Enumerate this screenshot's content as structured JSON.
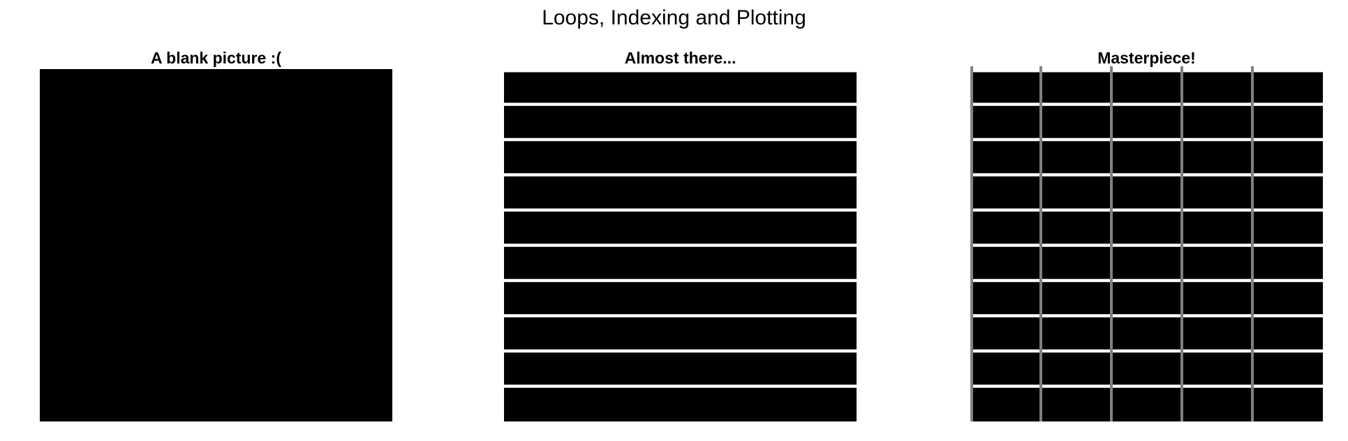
{
  "figure": {
    "title": "Loops, Indexing and Plotting"
  },
  "panels": [
    {
      "title": "A blank picture :(",
      "description_kind": "solid",
      "rows": 1,
      "cols": 1,
      "show_row_gaps": false,
      "show_col_lines": false
    },
    {
      "title": "Almost there...",
      "description_kind": "rows",
      "rows": 10,
      "cols": 1,
      "show_row_gaps": true,
      "show_col_lines": false
    },
    {
      "title": "Masterpiece!",
      "description_kind": "grid",
      "rows": 10,
      "cols": 5,
      "show_row_gaps": true,
      "show_col_lines": true
    }
  ],
  "colors": {
    "background": "#ffffff",
    "fill": "#000000",
    "row_gap": "#ffffff",
    "col_line": "#808080"
  }
}
